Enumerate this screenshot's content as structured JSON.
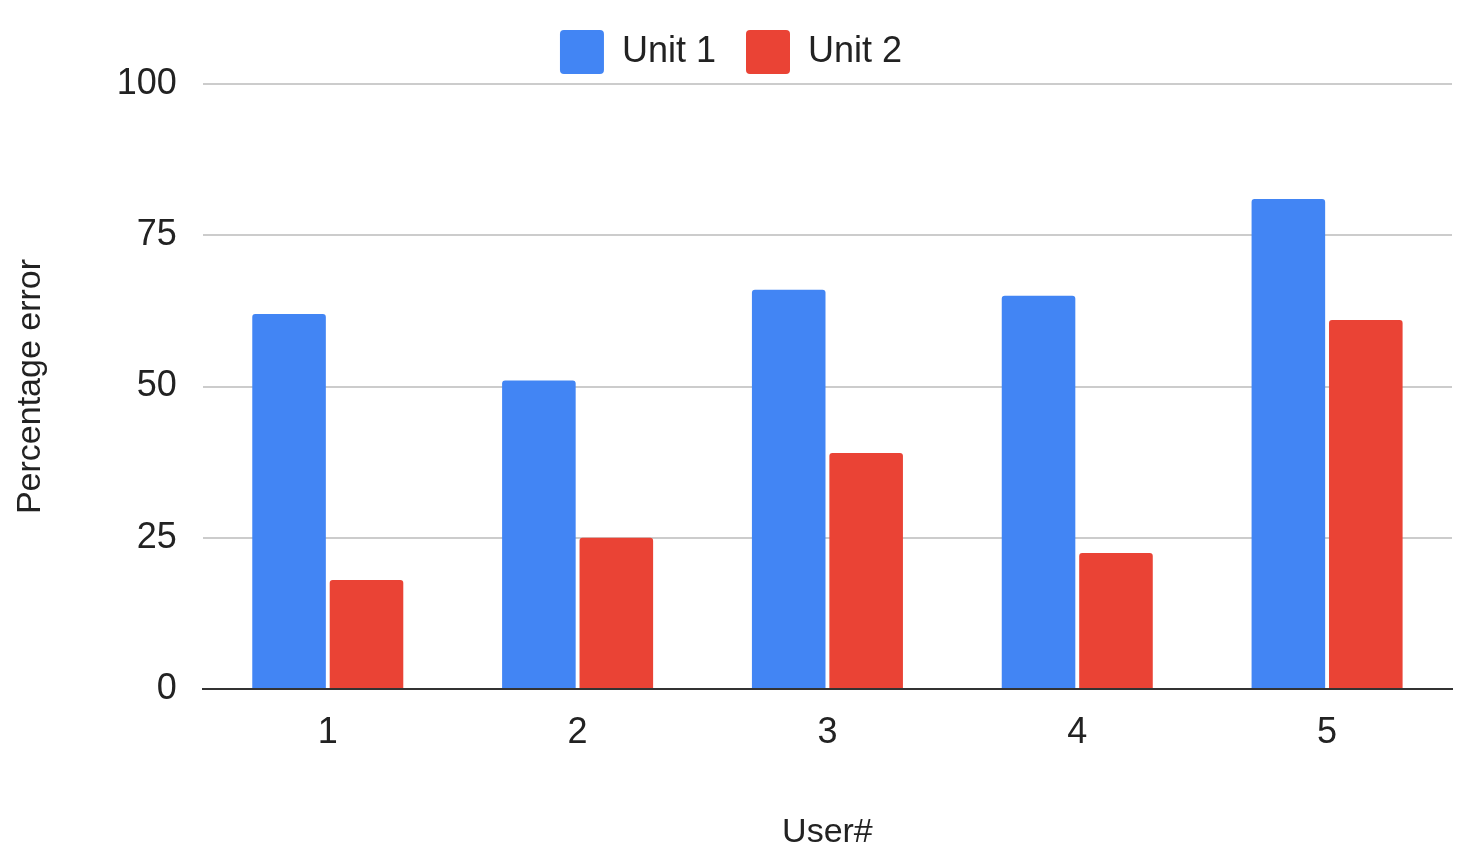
{
  "chart_data": {
    "type": "bar",
    "x_label": "User#",
    "y_label": "Percentage error",
    "categories": [
      "1",
      "2",
      "3",
      "4",
      "5"
    ],
    "series": [
      {
        "name": "Unit 1",
        "color": "#4285f4",
        "values": [
          62,
          51,
          66,
          65,
          81
        ]
      },
      {
        "name": "Unit 2",
        "color": "#ea4335",
        "values": [
          18,
          25,
          39,
          22.5,
          61
        ]
      }
    ],
    "ylim": [
      0,
      100
    ],
    "yticks": [
      0,
      25,
      50,
      75,
      100
    ],
    "grid": true,
    "legend": "top"
  }
}
